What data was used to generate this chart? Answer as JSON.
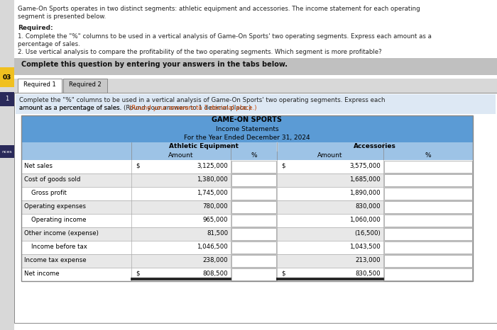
{
  "header_text": [
    "Game-On Sports operates in two distinct segments: athletic equipment and accessories. The income statement for each operating",
    "segment is presented below."
  ],
  "required_bold": "Required:",
  "required_lines": [
    "1. Complete the \"%\" columns to be used in a vertical analysis of Game-On Sports' two operating segments. Express each amount as a",
    "percentage of sales.",
    "2. Use vertical analysis to compare the profitability of the two operating segments. Which segment is more profitable?"
  ],
  "complete_text": "Complete this question by entering your answers in the tabs below.",
  "tab1": "Required 1",
  "tab2": "Required 2",
  "instruction_text": [
    "Complete the \"%\" columns to be used in a vertical analysis of Game-On Sports' two operating segments. Express each",
    "amount as a percentage of sales. (Round your answers to 1 decimal place.)"
  ],
  "table_title1": "GAME-ON SPORTS",
  "table_title2": "Income Statements",
  "table_title3": "For the Year Ended December 31, 2024",
  "col_header1": "Athletic Equipment",
  "col_header2": "Accessories",
  "col_sub1": "Amount",
  "col_sub2": "%",
  "col_sub3": "Amount",
  "col_sub4": "%",
  "rows": [
    {
      "label": "Net sales",
      "ath_prefix": "$",
      "ath_val": "3,125,000",
      "acc_prefix": "$",
      "acc_val": "3,575,000",
      "indent": false
    },
    {
      "label": "Cost of goods sold",
      "ath_prefix": "",
      "ath_val": "1,380,000",
      "acc_prefix": "",
      "acc_val": "1,685,000",
      "indent": false
    },
    {
      "label": "Gross profit",
      "ath_prefix": "",
      "ath_val": "1,745,000",
      "acc_prefix": "",
      "acc_val": "1,890,000",
      "indent": true
    },
    {
      "label": "Operating expenses",
      "ath_prefix": "",
      "ath_val": "780,000",
      "acc_prefix": "",
      "acc_val": "830,000",
      "indent": false
    },
    {
      "label": "Operating income",
      "ath_prefix": "",
      "ath_val": "965,000",
      "acc_prefix": "",
      "acc_val": "1,060,000",
      "indent": true
    },
    {
      "label": "Other income (expense)",
      "ath_prefix": "",
      "ath_val": "81,500",
      "acc_prefix": "",
      "acc_val": "(16,500)",
      "indent": false
    },
    {
      "label": "Income before tax",
      "ath_prefix": "",
      "ath_val": "1,046,500",
      "acc_prefix": "",
      "acc_val": "1,043,500",
      "indent": true
    },
    {
      "label": "Income tax expense",
      "ath_prefix": "",
      "ath_val": "238,000",
      "acc_prefix": "",
      "acc_val": "213,000",
      "indent": false
    },
    {
      "label": "Net income",
      "ath_prefix": "$",
      "ath_val": "808,500",
      "acc_prefix": "$",
      "acc_val": "830,500",
      "indent": false
    }
  ],
  "bg_color_page": "#d8d8d8",
  "bg_color_white": "#ffffff",
  "bg_color_complete": "#c0c0c0",
  "table_header_bg": "#5b9bd5",
  "table_subheader_bg": "#9dc3e6",
  "table_row_odd": "#e8e8e8",
  "table_row_even": "#ffffff",
  "table_border": "#888888",
  "table_cell_border": "#aaaaaa",
  "sidebar_yellow": "#f0c020",
  "sidebar_dark": "#2a2a5a",
  "instruction_bg": "#dde8f4",
  "dots": "..."
}
